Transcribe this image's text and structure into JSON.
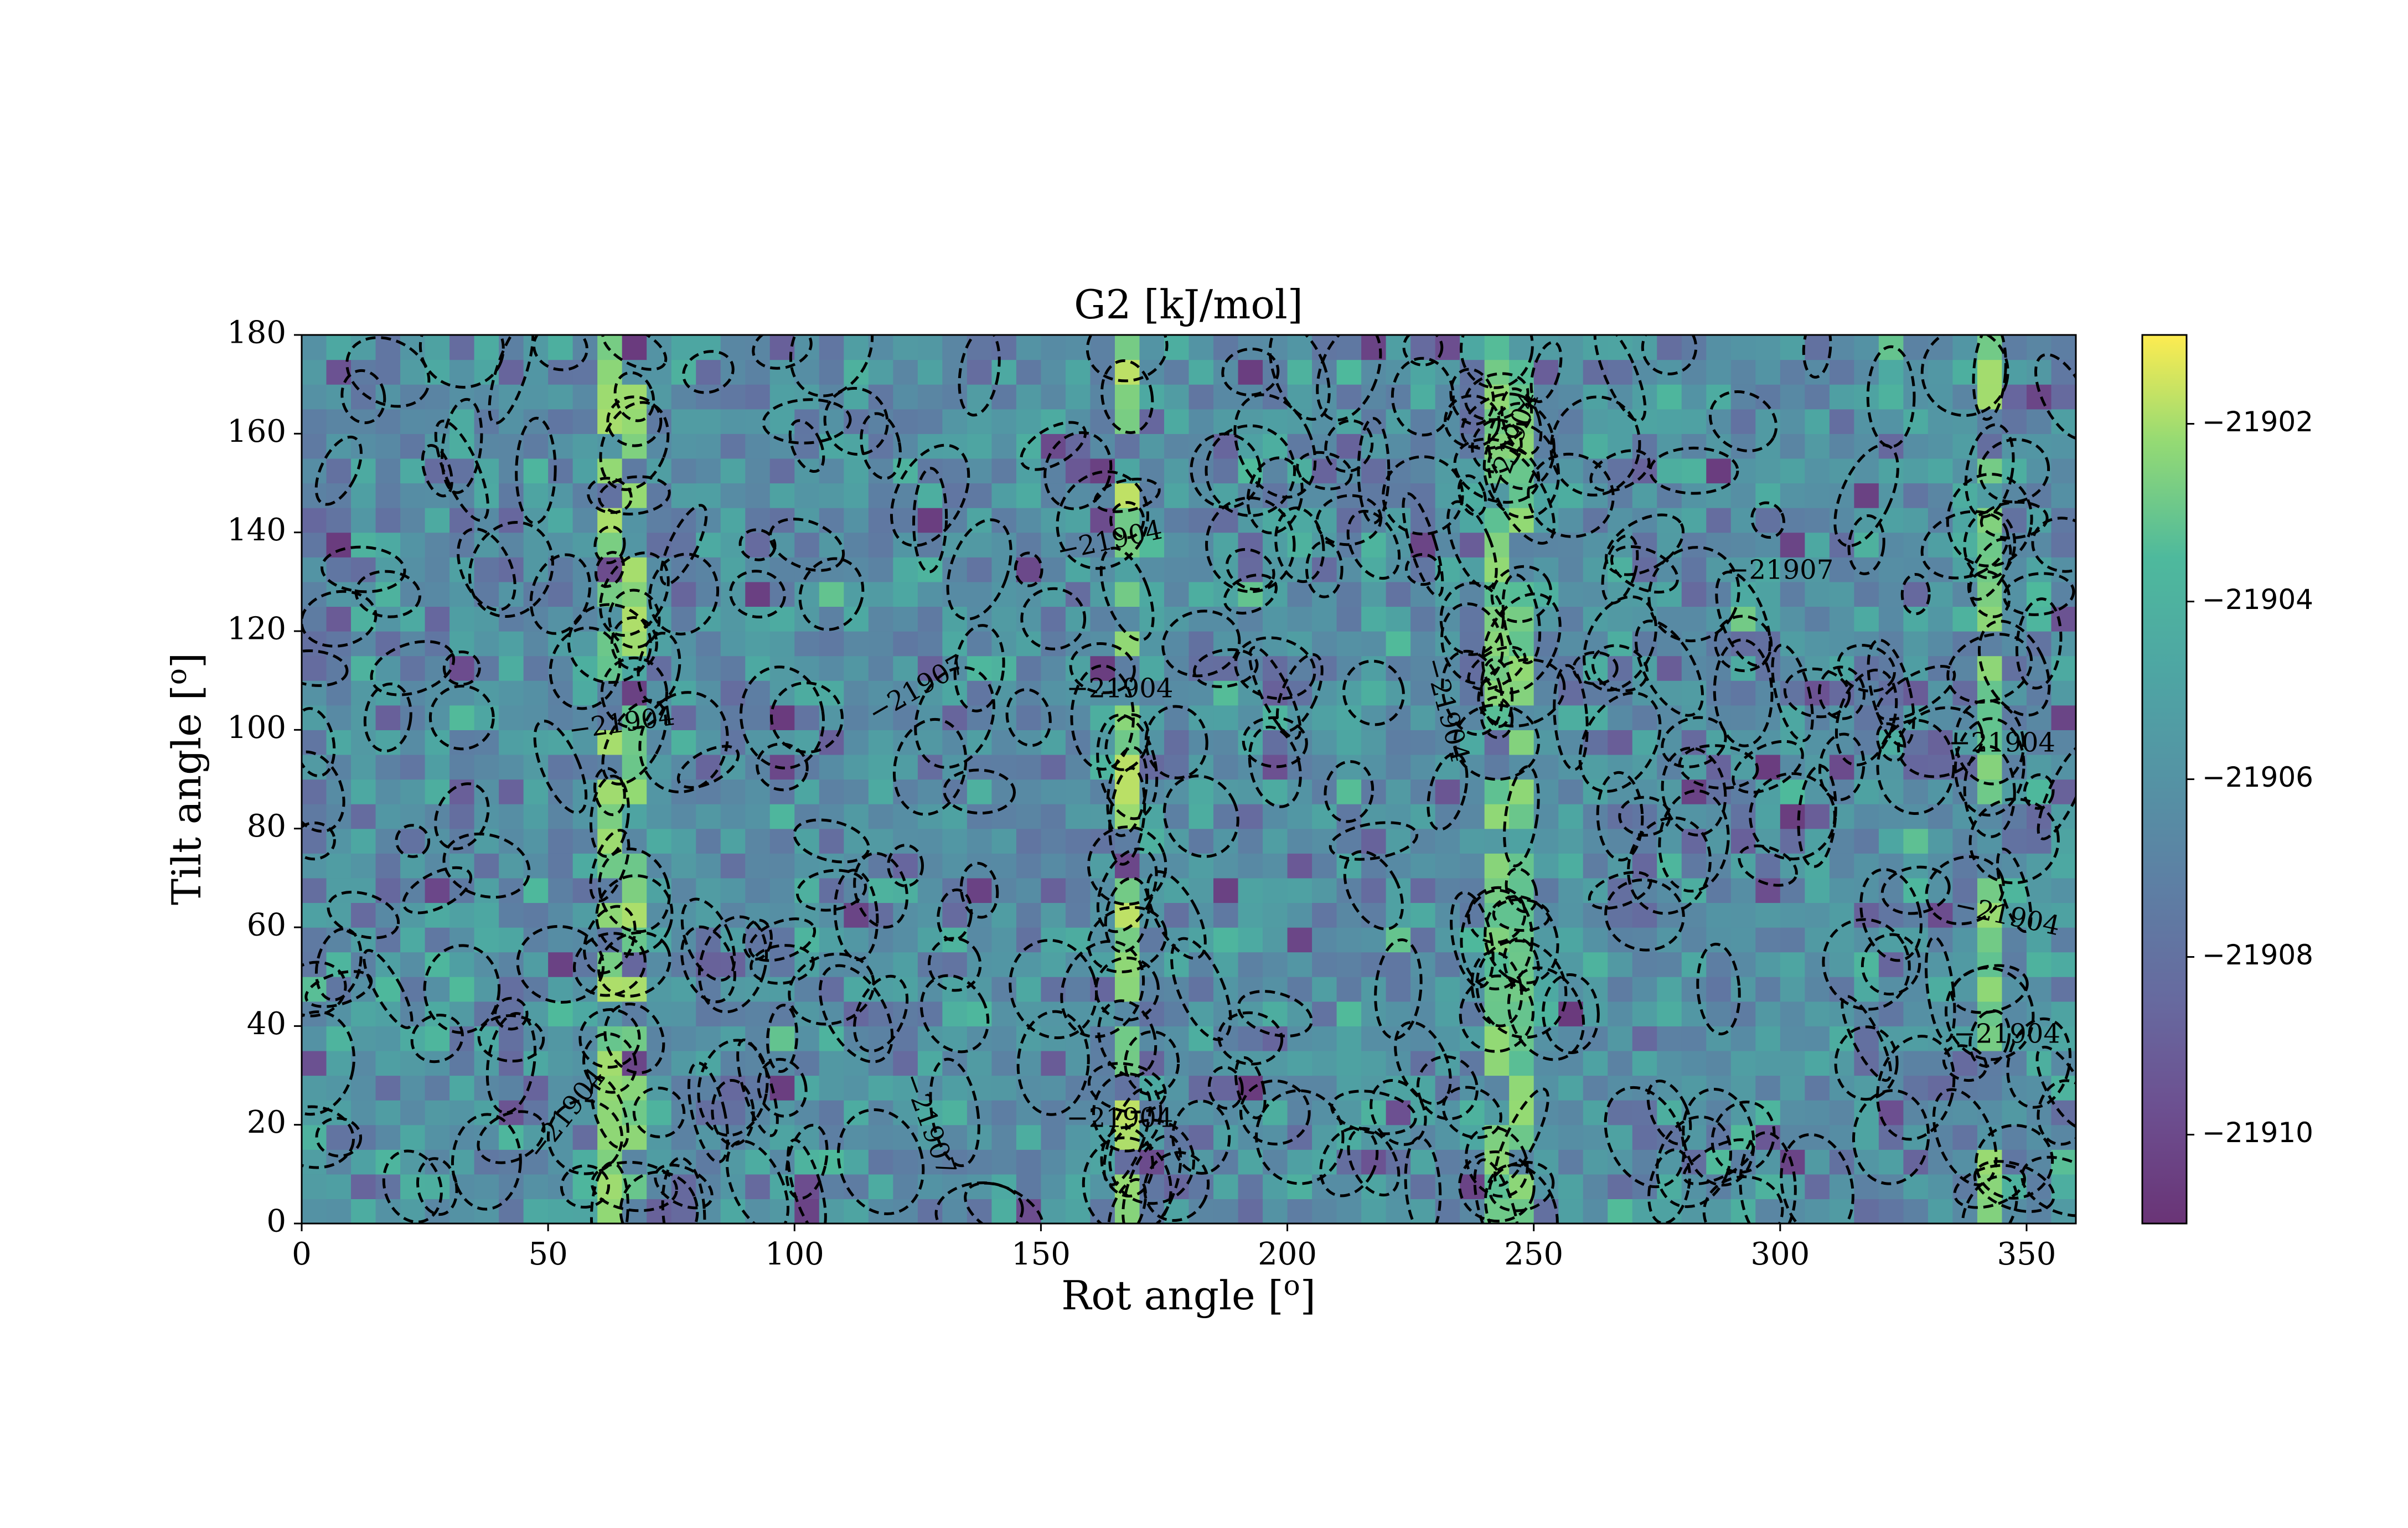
{
  "chart_data": {
    "type": "heatmap",
    "title": "G2 [kJ/mol]",
    "xlabel": "Rot angle [",
    "xlabel_sup": "o",
    "xlabel_end": "]",
    "ylabel": "Tilt angle [",
    "ylabel_sup": "o",
    "ylabel_end": "]",
    "xlim": [
      0,
      360
    ],
    "ylim": [
      0,
      180
    ],
    "xticks": [
      0,
      50,
      100,
      150,
      200,
      250,
      300,
      350
    ],
    "yticks": [
      0,
      20,
      40,
      60,
      80,
      100,
      120,
      140,
      160,
      180
    ],
    "colormap": "viridis",
    "alpha": 0.8,
    "colorbar": {
      "range": [
        -21911,
        -21901
      ],
      "ticks": [
        -21902,
        -21904,
        -21906,
        -21908,
        -21910
      ],
      "tick_labels": [
        "−21902",
        "−21904",
        "−21906",
        "−21908",
        "−21910"
      ]
    },
    "grid": false,
    "contour_style": "dashed",
    "contour_labels": [
      {
        "text": "−21904",
        "x": 54,
        "y": 22,
        "angle": -52
      },
      {
        "text": "−21904",
        "x": 65,
        "y": 101,
        "angle": -8
      },
      {
        "text": "−21907",
        "x": 125,
        "y": 108,
        "angle": -30
      },
      {
        "text": "−21907",
        "x": 127,
        "y": 20,
        "angle": 70
      },
      {
        "text": "−21904",
        "x": 164,
        "y": 138,
        "angle": -12
      },
      {
        "text": "−21904",
        "x": 166,
        "y": 108,
        "angle": 0
      },
      {
        "text": "−21904",
        "x": 166,
        "y": 21,
        "angle": 0
      },
      {
        "text": "−21904",
        "x": 232,
        "y": 104,
        "angle": 75
      },
      {
        "text": "−21904",
        "x": 246,
        "y": 158,
        "angle": -70
      },
      {
        "text": "−21907",
        "x": 300,
        "y": 132,
        "angle": 0
      },
      {
        "text": "−21904",
        "x": 345,
        "y": 97,
        "angle": 0
      },
      {
        "text": "−21904",
        "x": 346,
        "y": 62,
        "angle": 12
      },
      {
        "text": "−21904",
        "x": 346,
        "y": 38,
        "angle": 0
      }
    ],
    "bright_columns": [
      {
        "x": 65,
        "value": -21902.5
      },
      {
        "x": 166,
        "value": -21902.3
      },
      {
        "x": 245,
        "value": -21902.8
      },
      {
        "x": 342,
        "value": -21902.6
      }
    ],
    "value_range": [
      -21911,
      -21901
    ]
  }
}
